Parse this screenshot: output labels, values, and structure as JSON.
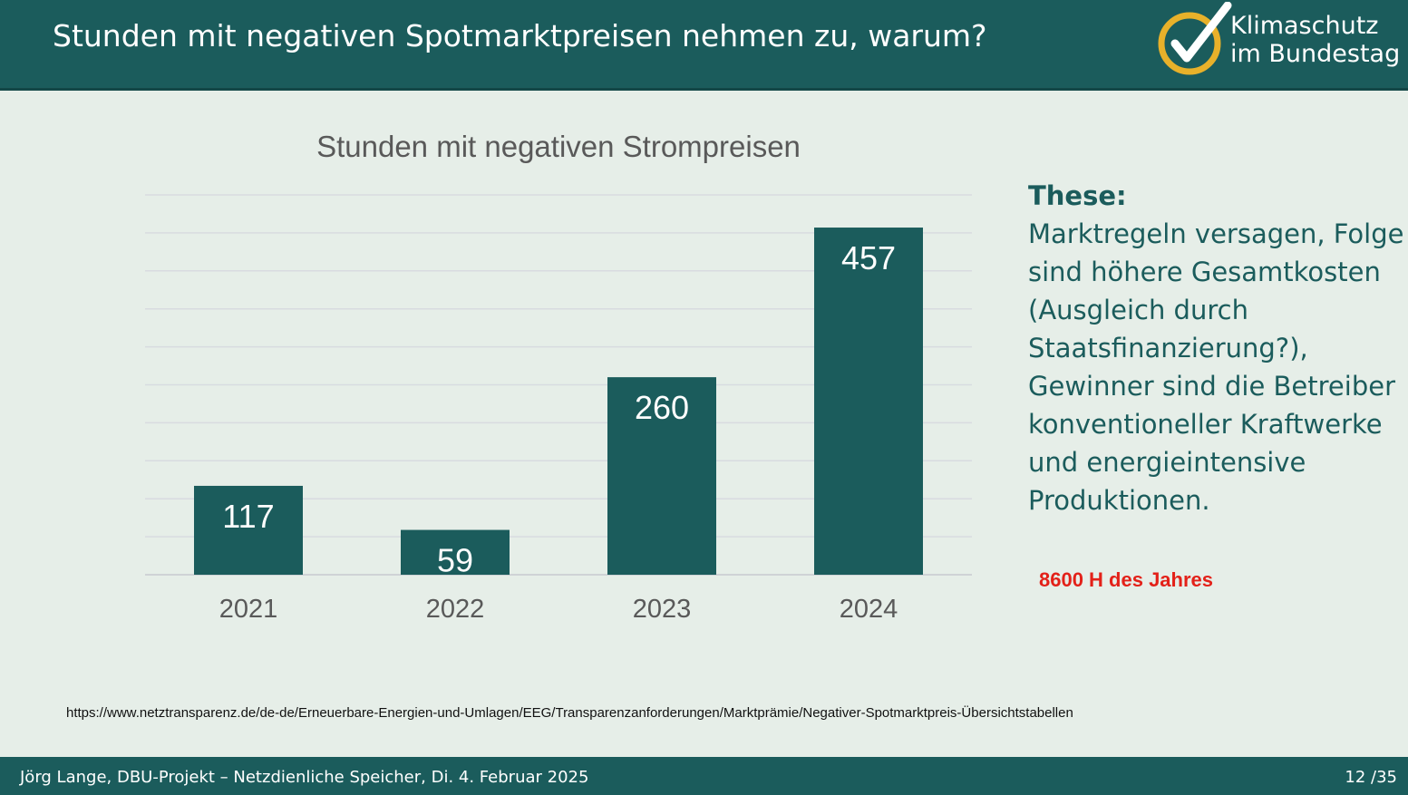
{
  "header": {
    "title": "Stunden mit negativen Spotmarktpreisen nehmen zu, warum?",
    "logo_line1": "Klimaschutz",
    "logo_line2": "im Bundestag",
    "logo_icon": "checkmark-circle-icon"
  },
  "chart_data": {
    "type": "bar",
    "title": "Stunden mit negativen Strompreisen",
    "categories": [
      "2021",
      "2022",
      "2023",
      "2024"
    ],
    "values": [
      117,
      59,
      260,
      457
    ],
    "ylim": [
      0,
      500
    ],
    "grid": true,
    "bar_color": "#1b5c5c",
    "xlabel": "",
    "ylabel": ""
  },
  "sidebar": {
    "title": "These:",
    "lines": [
      "Marktregeln versagen, Folge",
      "sind höhere Gesamtkosten",
      "(Ausgleich durch",
      "Staatsfinanzierung?),",
      "Gewinner sind die Betreiber",
      "konventioneller Kraftwerke",
      "und energieintensive",
      "Produktionen."
    ],
    "note": "8600 H des Jahres",
    "note_color": "#e32119"
  },
  "source_url": "https://www.netztransparenz.de/de-de/Erneuerbare-Energien-und-Umlagen/EEG/Transparenzanforderungen/Marktprämie/Negativer-Spotmarktpreis-Übersichtstabellen",
  "footer": {
    "left": "Jörg Lange, DBU-Projekt – Netzdienliche Speicher, Di. 4. Februar 2025",
    "page": "12 /35"
  },
  "colors": {
    "primary": "#1b5c5c",
    "background": "#e6eee8",
    "logo_ring": "#e8b12a"
  }
}
